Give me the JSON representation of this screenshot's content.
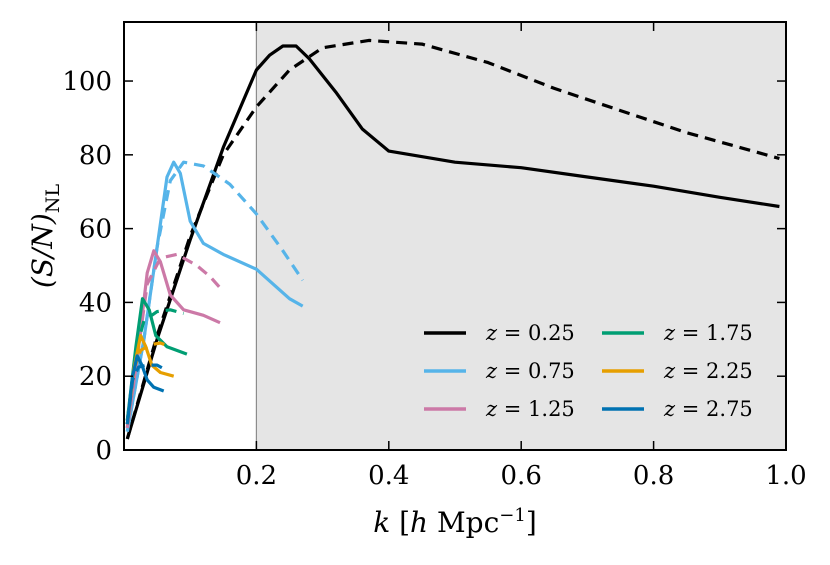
{
  "chart_data": {
    "type": "line",
    "title": "",
    "xlabel": "k [h Mpc^-1]",
    "xlabel_parts": {
      "var": "k",
      "open": "[",
      "h": "h",
      "unit": "Mpc",
      "exp": "−1",
      "close": "]"
    },
    "ylabel": "(S/N)_NL",
    "ylabel_parts": {
      "main": "(S/N)",
      "sub": "NL"
    },
    "xlim": [
      0.0,
      1.0
    ],
    "ylim": [
      0,
      116
    ],
    "xticks": [
      0.2,
      0.4,
      0.6,
      0.8,
      1.0
    ],
    "xtick_labels": [
      "0.2",
      "0.4",
      "0.6",
      "0.8",
      "1.0"
    ],
    "yticks": [
      0,
      20,
      40,
      60,
      80,
      100
    ],
    "ytick_labels": [
      "0",
      "20",
      "40",
      "60",
      "80",
      "100"
    ],
    "shaded_region": {
      "x_from": 0.2,
      "x_to": 1.0,
      "color": "#e5e5e5"
    },
    "vertical_line": {
      "x": 0.2,
      "color": "#8c8c8c"
    },
    "legend_position": "lower-right",
    "series": [
      {
        "name": "z = 0.25",
        "color": "#000000",
        "solid": [
          [
            0.005,
            3
          ],
          [
            0.05,
            30
          ],
          [
            0.1,
            57
          ],
          [
            0.15,
            82
          ],
          [
            0.2,
            103
          ],
          [
            0.22,
            107
          ],
          [
            0.24,
            109.5
          ],
          [
            0.26,
            109.5
          ],
          [
            0.28,
            106
          ],
          [
            0.32,
            97
          ],
          [
            0.36,
            87
          ],
          [
            0.4,
            81
          ],
          [
            0.5,
            78
          ],
          [
            0.6,
            76.5
          ],
          [
            0.7,
            74
          ],
          [
            0.8,
            71.5
          ],
          [
            0.9,
            68.5
          ],
          [
            0.99,
            66
          ]
        ],
        "dashed": [
          [
            0.005,
            3
          ],
          [
            0.05,
            31
          ],
          [
            0.1,
            58
          ],
          [
            0.15,
            80
          ],
          [
            0.2,
            93
          ],
          [
            0.25,
            103
          ],
          [
            0.3,
            109
          ],
          [
            0.37,
            111
          ],
          [
            0.45,
            110
          ],
          [
            0.55,
            105
          ],
          [
            0.65,
            98
          ],
          [
            0.75,
            92
          ],
          [
            0.85,
            86
          ],
          [
            0.93,
            82
          ],
          [
            0.99,
            79
          ]
        ]
      },
      {
        "name": "z = 0.75",
        "color": "#56b4e9",
        "solid": [
          [
            0.005,
            5
          ],
          [
            0.03,
            30
          ],
          [
            0.05,
            55
          ],
          [
            0.065,
            74
          ],
          [
            0.075,
            78
          ],
          [
            0.085,
            75
          ],
          [
            0.1,
            62
          ],
          [
            0.12,
            56
          ],
          [
            0.15,
            53
          ],
          [
            0.2,
            49
          ],
          [
            0.25,
            41
          ],
          [
            0.27,
            39
          ]
        ],
        "dashed": [
          [
            0.005,
            5
          ],
          [
            0.03,
            30
          ],
          [
            0.05,
            55
          ],
          [
            0.07,
            73
          ],
          [
            0.09,
            78
          ],
          [
            0.12,
            77
          ],
          [
            0.16,
            72
          ],
          [
            0.2,
            64
          ],
          [
            0.24,
            54
          ],
          [
            0.27,
            46
          ]
        ]
      },
      {
        "name": "z = 1.25",
        "color": "#cc79a7",
        "solid": [
          [
            0.005,
            6
          ],
          [
            0.02,
            25
          ],
          [
            0.035,
            48
          ],
          [
            0.045,
            54
          ],
          [
            0.055,
            51
          ],
          [
            0.07,
            42
          ],
          [
            0.09,
            38
          ],
          [
            0.12,
            36.5
          ],
          [
            0.145,
            34.5
          ]
        ],
        "dashed": [
          [
            0.005,
            6
          ],
          [
            0.02,
            25
          ],
          [
            0.035,
            45
          ],
          [
            0.055,
            52
          ],
          [
            0.08,
            53
          ],
          [
            0.11,
            50
          ],
          [
            0.13,
            47
          ],
          [
            0.145,
            44
          ]
        ]
      },
      {
        "name": "z = 1.75",
        "color": "#009e73",
        "solid": [
          [
            0.005,
            8
          ],
          [
            0.018,
            28
          ],
          [
            0.028,
            41
          ],
          [
            0.038,
            38
          ],
          [
            0.048,
            31
          ],
          [
            0.065,
            28
          ],
          [
            0.095,
            26
          ]
        ],
        "dashed": [
          [
            0.005,
            8
          ],
          [
            0.018,
            27
          ],
          [
            0.03,
            35
          ],
          [
            0.05,
            37.5
          ],
          [
            0.07,
            38
          ],
          [
            0.09,
            37
          ]
        ]
      },
      {
        "name": "z = 2.25",
        "color": "#e69f00",
        "solid": [
          [
            0.005,
            7
          ],
          [
            0.015,
            22
          ],
          [
            0.025,
            31
          ],
          [
            0.033,
            28
          ],
          [
            0.042,
            23
          ],
          [
            0.055,
            21
          ],
          [
            0.075,
            20
          ]
        ],
        "dashed": [
          [
            0.005,
            7
          ],
          [
            0.015,
            22
          ],
          [
            0.025,
            27
          ],
          [
            0.04,
            28.5
          ],
          [
            0.055,
            29
          ],
          [
            0.07,
            28
          ]
        ]
      },
      {
        "name": "z = 2.75",
        "color": "#0072b2",
        "solid": [
          [
            0.005,
            7
          ],
          [
            0.013,
            20
          ],
          [
            0.02,
            25.5
          ],
          [
            0.027,
            23
          ],
          [
            0.035,
            19
          ],
          [
            0.045,
            17
          ],
          [
            0.06,
            16
          ]
        ],
        "dashed": [
          [
            0.005,
            7
          ],
          [
            0.013,
            19
          ],
          [
            0.022,
            22.5
          ],
          [
            0.035,
            23
          ],
          [
            0.05,
            23
          ],
          [
            0.06,
            22
          ]
        ]
      }
    ],
    "legend": [
      {
        "pre": "z",
        "eq": " = ",
        "val": "0.25",
        "color": "#000000"
      },
      {
        "pre": "z",
        "eq": " = ",
        "val": "0.75",
        "color": "#56b4e9"
      },
      {
        "pre": "z",
        "eq": " = ",
        "val": "1.25",
        "color": "#cc79a7"
      },
      {
        "pre": "z",
        "eq": " = ",
        "val": "1.75",
        "color": "#009e73"
      },
      {
        "pre": "z",
        "eq": " = ",
        "val": "2.25",
        "color": "#e69f00"
      },
      {
        "pre": "z",
        "eq": " = ",
        "val": "2.75",
        "color": "#0072b2"
      }
    ]
  }
}
